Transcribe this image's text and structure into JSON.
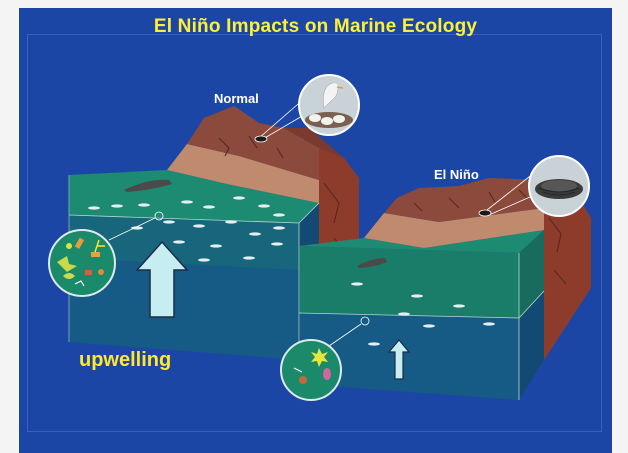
{
  "title": "El Niño Impacts on Marine Ecology",
  "labels": {
    "normal": "Normal",
    "el_nino": "El Niño",
    "upwelling": "upwelling"
  },
  "colors": {
    "background": "#1c46a6",
    "title": "#ffef36",
    "upwelling_label": "#ffe82e",
    "surface_water": "#1a7d6a",
    "deep_water": "#165a86",
    "cliff": "#8b4a3c",
    "arrow": "#c6eef0"
  }
}
